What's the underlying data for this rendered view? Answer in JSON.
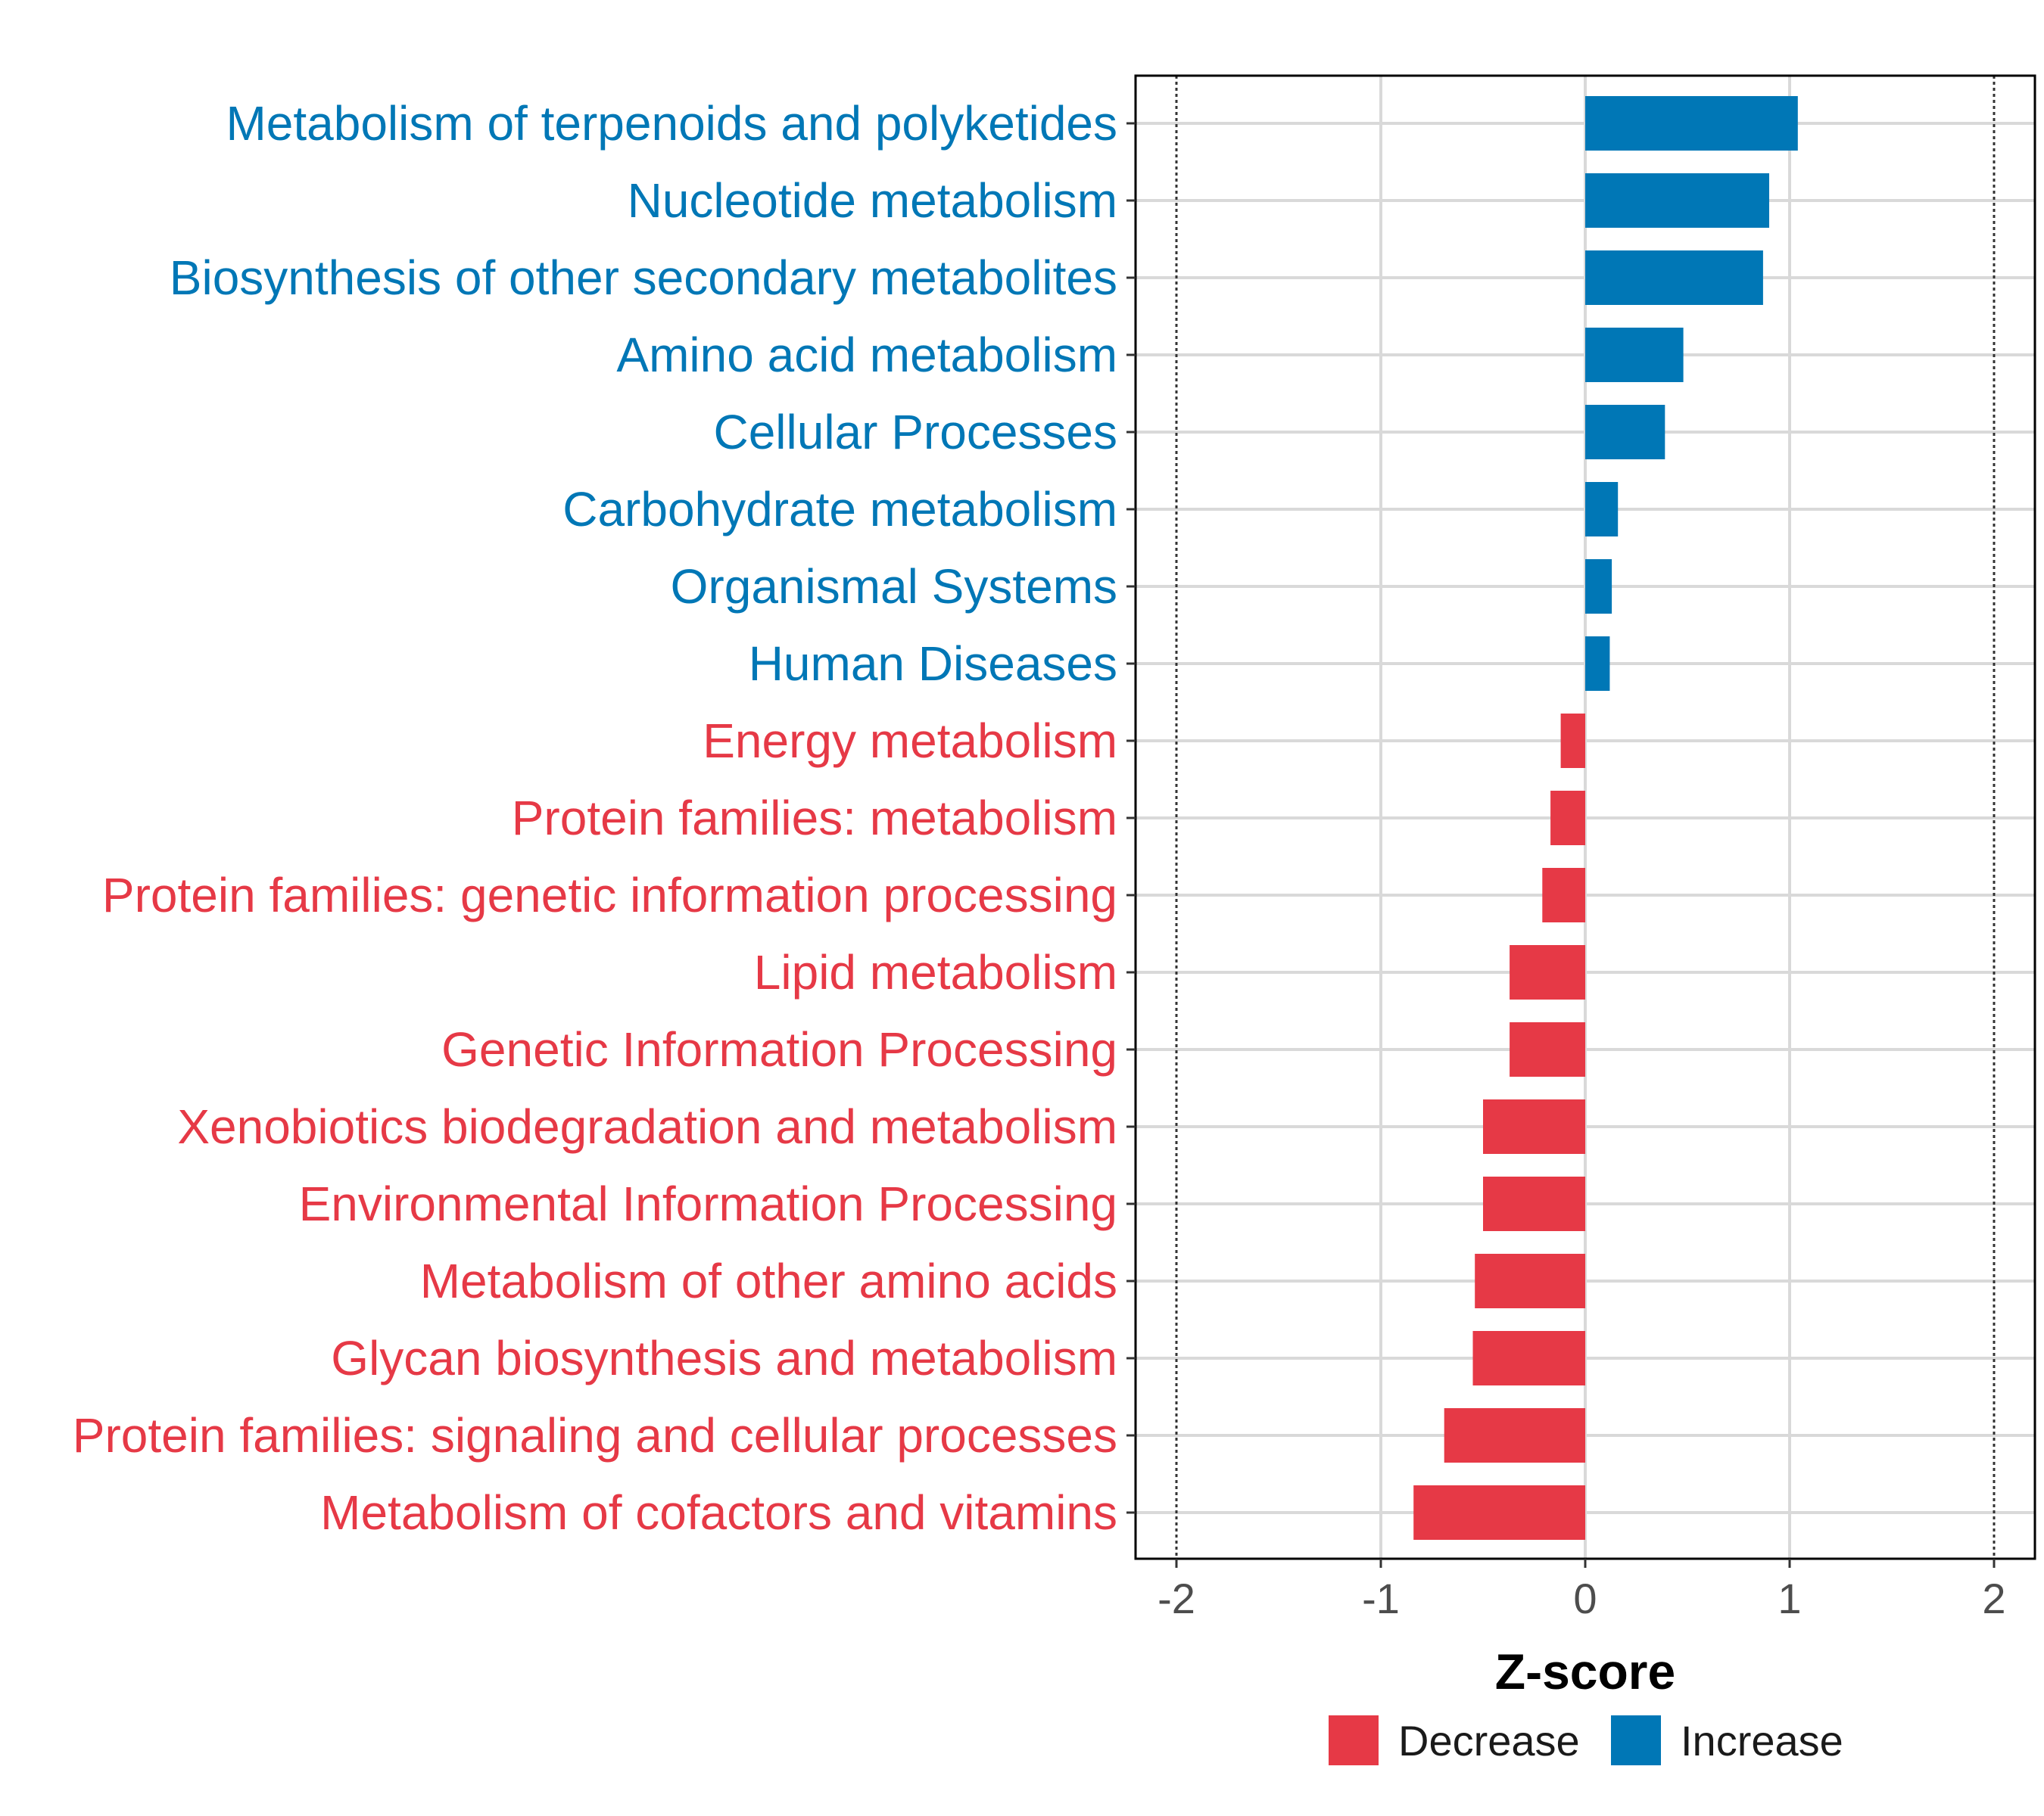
{
  "chart_data": {
    "type": "bar",
    "orientation": "horizontal",
    "title": "",
    "xlabel": "Z-score",
    "ylabel": "",
    "xlim": [
      -2.2,
      2.2
    ],
    "xticks": [
      -2,
      -1,
      0,
      1,
      2
    ],
    "xtick_labels": [
      "-2",
      "-1",
      "0",
      "1",
      "2"
    ],
    "reference_lines": [
      -2,
      2
    ],
    "grid": true,
    "categories": [
      "Metabolism of terpenoids and polyketides",
      "Nucleotide metabolism",
      "Biosynthesis of other secondary metabolites",
      "Amino acid metabolism",
      "Cellular Processes",
      "Carbohydrate metabolism",
      "Organismal Systems",
      "Human Diseases",
      "Energy metabolism",
      "Protein families: metabolism",
      "Protein families: genetic information processing",
      "Lipid metabolism",
      "Genetic Information Processing",
      "Xenobiotics biodegradation and metabolism",
      "Environmental Information Processing",
      "Metabolism of other amino acids",
      "Glycan biosynthesis and metabolism",
      "Protein families: signaling and cellular processes",
      "Metabolism of cofactors and vitamins"
    ],
    "values": [
      1.04,
      0.9,
      0.87,
      0.48,
      0.39,
      0.16,
      0.13,
      0.12,
      -0.12,
      -0.17,
      -0.21,
      -0.37,
      -0.37,
      -0.5,
      -0.5,
      -0.54,
      -0.55,
      -0.69,
      -0.84
    ],
    "groups": [
      "Increase",
      "Increase",
      "Increase",
      "Increase",
      "Increase",
      "Increase",
      "Increase",
      "Increase",
      "Decrease",
      "Decrease",
      "Decrease",
      "Decrease",
      "Decrease",
      "Decrease",
      "Decrease",
      "Decrease",
      "Decrease",
      "Decrease",
      "Decrease"
    ],
    "legend": {
      "placement": "bottom",
      "entries": [
        {
          "label": "Decrease",
          "color": "#e63946"
        },
        {
          "label": "Increase",
          "color": "#0077b6"
        }
      ]
    }
  }
}
